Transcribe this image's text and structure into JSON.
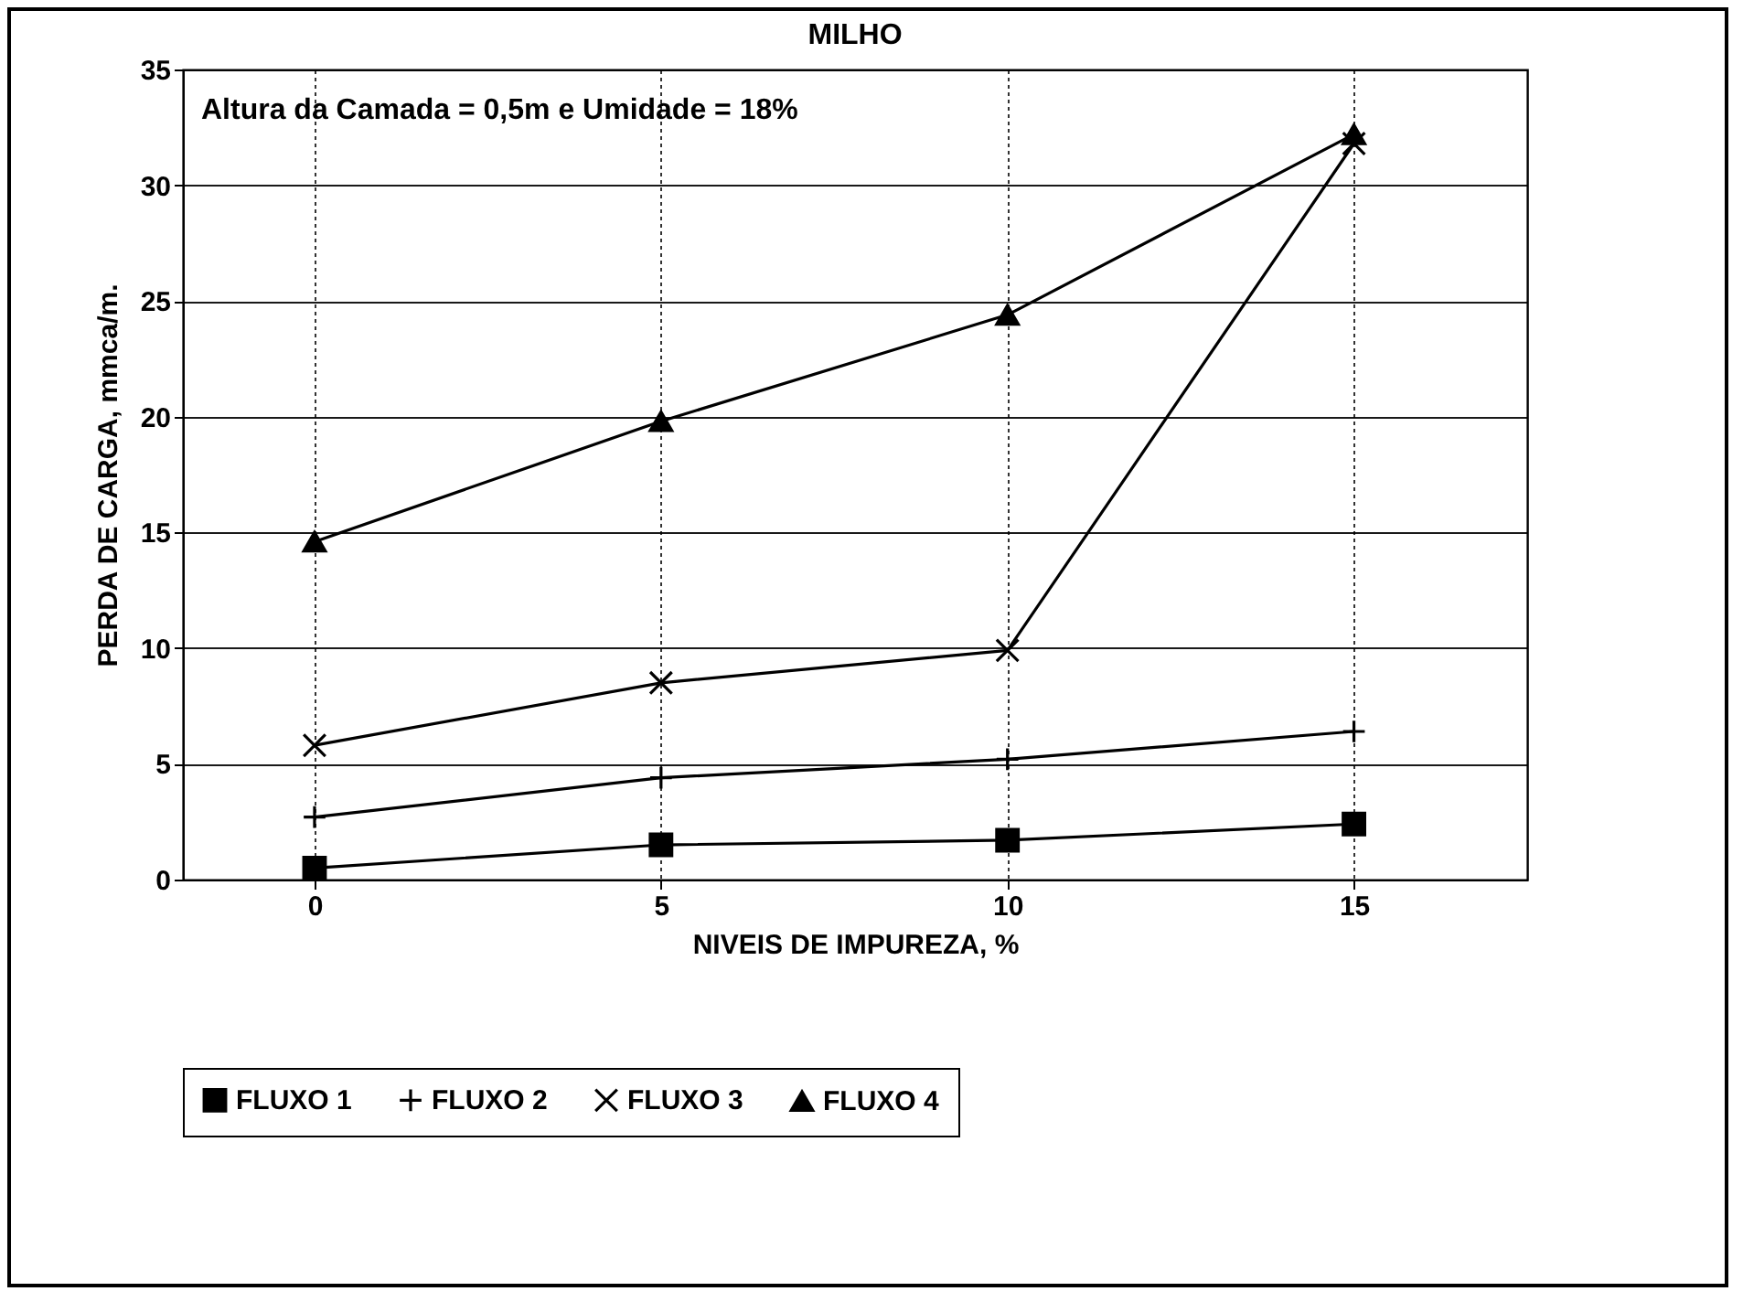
{
  "chart_data": {
    "type": "line",
    "title": "MILHO",
    "annotations": [
      "Altura da Camada = 0,5m  e Umidade = 18%"
    ],
    "xlabel": "NIVEIS DE IMPUREZA, %",
    "ylabel": "PERDA DE CARGA, mmca/m.",
    "x": [
      0,
      5,
      10,
      15
    ],
    "series": [
      {
        "name": "FLUXO 1",
        "color": "#000000",
        "marker": "square",
        "values": [
          0.5,
          1.5,
          1.7,
          2.4
        ]
      },
      {
        "name": "FLUXO 2",
        "color": "#000000",
        "marker": "cross",
        "values": [
          2.7,
          4.4,
          5.2,
          6.4
        ]
      },
      {
        "name": "FLUXO 3",
        "color": "#000000",
        "marker": "cross",
        "values": [
          5.8,
          8.5,
          9.9,
          31.8
        ]
      },
      {
        "name": "FLUXO 4",
        "color": "#000000",
        "marker": "triangle",
        "values": [
          14.6,
          19.8,
          24.4,
          32.2
        ]
      }
    ],
    "xlim": [
      -1.9,
      17.5
    ],
    "xticks": [
      0,
      5,
      10,
      15
    ],
    "ylim": [
      0,
      35
    ],
    "yticks": [
      0,
      5,
      10,
      15,
      20,
      25,
      30,
      35
    ],
    "grid": true,
    "legend": "bottom",
    "line_style": "solid"
  }
}
